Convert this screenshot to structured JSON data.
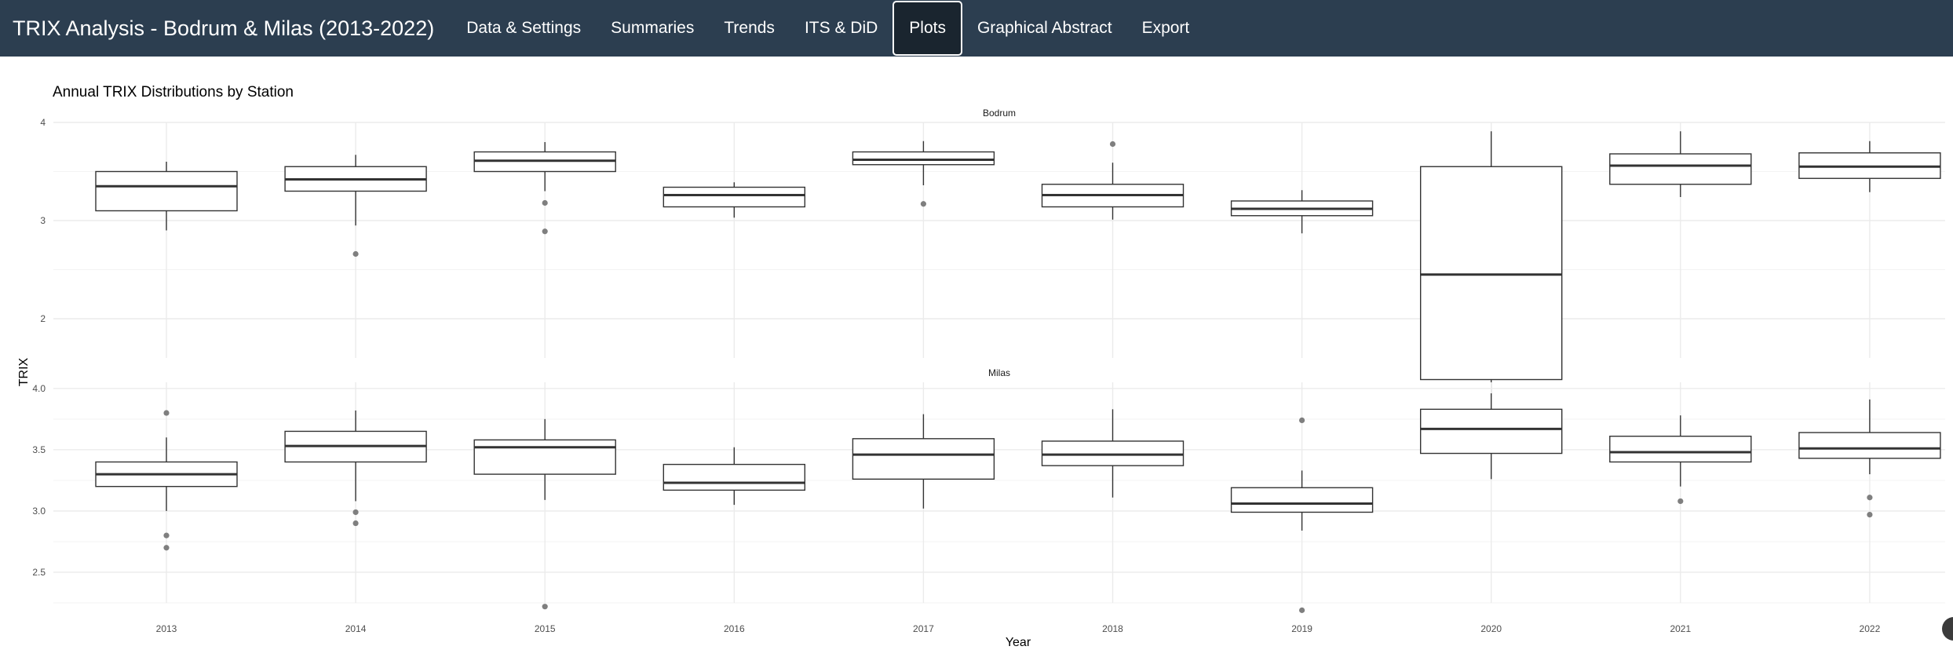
{
  "navbar": {
    "brand": "TRIX Analysis - Bodrum & Milas (2013-2022)",
    "tabs": [
      {
        "label": "Data & Settings",
        "active": false
      },
      {
        "label": "Summaries",
        "active": false
      },
      {
        "label": "Trends",
        "active": false
      },
      {
        "label": "ITS & DiD",
        "active": false
      },
      {
        "label": "Plots",
        "active": true
      },
      {
        "label": "Graphical Abstract",
        "active": false
      },
      {
        "label": "Export",
        "active": false
      }
    ]
  },
  "chart_data": {
    "type": "boxplot",
    "title": "Annual TRIX Distributions by Station",
    "xlabel": "Year",
    "ylabel": "TRIX",
    "categories": [
      "2013",
      "2014",
      "2015",
      "2016",
      "2017",
      "2018",
      "2019",
      "2020",
      "2021",
      "2022"
    ],
    "colors": {
      "box_stroke": "#333333",
      "outlier": "#7f7f7f",
      "grid_major": "#ebebeb",
      "grid_minor": "#f3f3f3",
      "axis_text": "#4d4d4d"
    },
    "panels": [
      {
        "name": "Bodrum",
        "ylim": [
          1.6,
          4.0
        ],
        "yticks": [
          2,
          3,
          4
        ],
        "ytick_labels": [
          "2",
          "3",
          "4"
        ],
        "boxes": [
          {
            "year": "2013",
            "lower": 2.9,
            "q1": 3.1,
            "median": 3.35,
            "q3": 3.5,
            "upper": 3.6,
            "outliers": []
          },
          {
            "year": "2014",
            "lower": 2.95,
            "q1": 3.3,
            "median": 3.42,
            "q3": 3.55,
            "upper": 3.67,
            "outliers": [
              2.66
            ]
          },
          {
            "year": "2015",
            "lower": 3.3,
            "q1": 3.5,
            "median": 3.61,
            "q3": 3.7,
            "upper": 3.8,
            "outliers": [
              3.18,
              2.89
            ]
          },
          {
            "year": "2016",
            "lower": 3.03,
            "q1": 3.14,
            "median": 3.26,
            "q3": 3.34,
            "upper": 3.39,
            "outliers": []
          },
          {
            "year": "2017",
            "lower": 3.36,
            "q1": 3.57,
            "median": 3.62,
            "q3": 3.7,
            "upper": 3.81,
            "outliers": [
              3.17
            ]
          },
          {
            "year": "2018",
            "lower": 3.01,
            "q1": 3.14,
            "median": 3.26,
            "q3": 3.37,
            "upper": 3.59,
            "outliers": [
              3.78
            ]
          },
          {
            "year": "2019",
            "lower": 2.87,
            "q1": 3.05,
            "median": 3.12,
            "q3": 3.2,
            "upper": 3.31,
            "outliers": []
          },
          {
            "year": "2020",
            "lower": 1.2,
            "q1": 1.38,
            "median": 2.45,
            "q3": 3.55,
            "upper": 3.91,
            "outliers": []
          },
          {
            "year": "2021",
            "lower": 3.24,
            "q1": 3.37,
            "median": 3.56,
            "q3": 3.68,
            "upper": 3.91,
            "outliers": []
          },
          {
            "year": "2022",
            "lower": 3.29,
            "q1": 3.43,
            "median": 3.55,
            "q3": 3.69,
            "upper": 3.81,
            "outliers": []
          }
        ]
      },
      {
        "name": "Milas",
        "ylim": [
          2.25,
          4.05
        ],
        "yticks": [
          2.5,
          3.0,
          3.5,
          4.0
        ],
        "ytick_labels": [
          "2.5",
          "3.0",
          "3.5",
          "4.0"
        ],
        "boxes": [
          {
            "year": "2013",
            "lower": 3.0,
            "q1": 3.2,
            "median": 3.3,
            "q3": 3.4,
            "upper": 3.6,
            "outliers": [
              3.8,
              2.8,
              2.7
            ]
          },
          {
            "year": "2014",
            "lower": 3.08,
            "q1": 3.4,
            "median": 3.53,
            "q3": 3.65,
            "upper": 3.82,
            "outliers": [
              2.99,
              2.9
            ]
          },
          {
            "year": "2015",
            "lower": 3.09,
            "q1": 3.3,
            "median": 3.52,
            "q3": 3.58,
            "upper": 3.75,
            "outliers": [
              2.22
            ]
          },
          {
            "year": "2016",
            "lower": 3.05,
            "q1": 3.17,
            "median": 3.23,
            "q3": 3.38,
            "upper": 3.52,
            "outliers": []
          },
          {
            "year": "2017",
            "lower": 3.02,
            "q1": 3.26,
            "median": 3.46,
            "q3": 3.59,
            "upper": 3.79,
            "outliers": []
          },
          {
            "year": "2018",
            "lower": 3.11,
            "q1": 3.37,
            "median": 3.46,
            "q3": 3.57,
            "upper": 3.83,
            "outliers": []
          },
          {
            "year": "2019",
            "lower": 2.84,
            "q1": 2.99,
            "median": 3.06,
            "q3": 3.19,
            "upper": 3.33,
            "outliers": [
              3.74,
              2.19
            ]
          },
          {
            "year": "2020",
            "lower": 3.26,
            "q1": 3.47,
            "median": 3.67,
            "q3": 3.83,
            "upper": 3.96,
            "outliers": []
          },
          {
            "year": "2021",
            "lower": 3.2,
            "q1": 3.4,
            "median": 3.48,
            "q3": 3.61,
            "upper": 3.78,
            "outliers": [
              3.08
            ]
          },
          {
            "year": "2022",
            "lower": 3.3,
            "q1": 3.43,
            "median": 3.51,
            "q3": 3.64,
            "upper": 3.91,
            "outliers": [
              3.11,
              2.97
            ]
          }
        ]
      }
    ]
  }
}
